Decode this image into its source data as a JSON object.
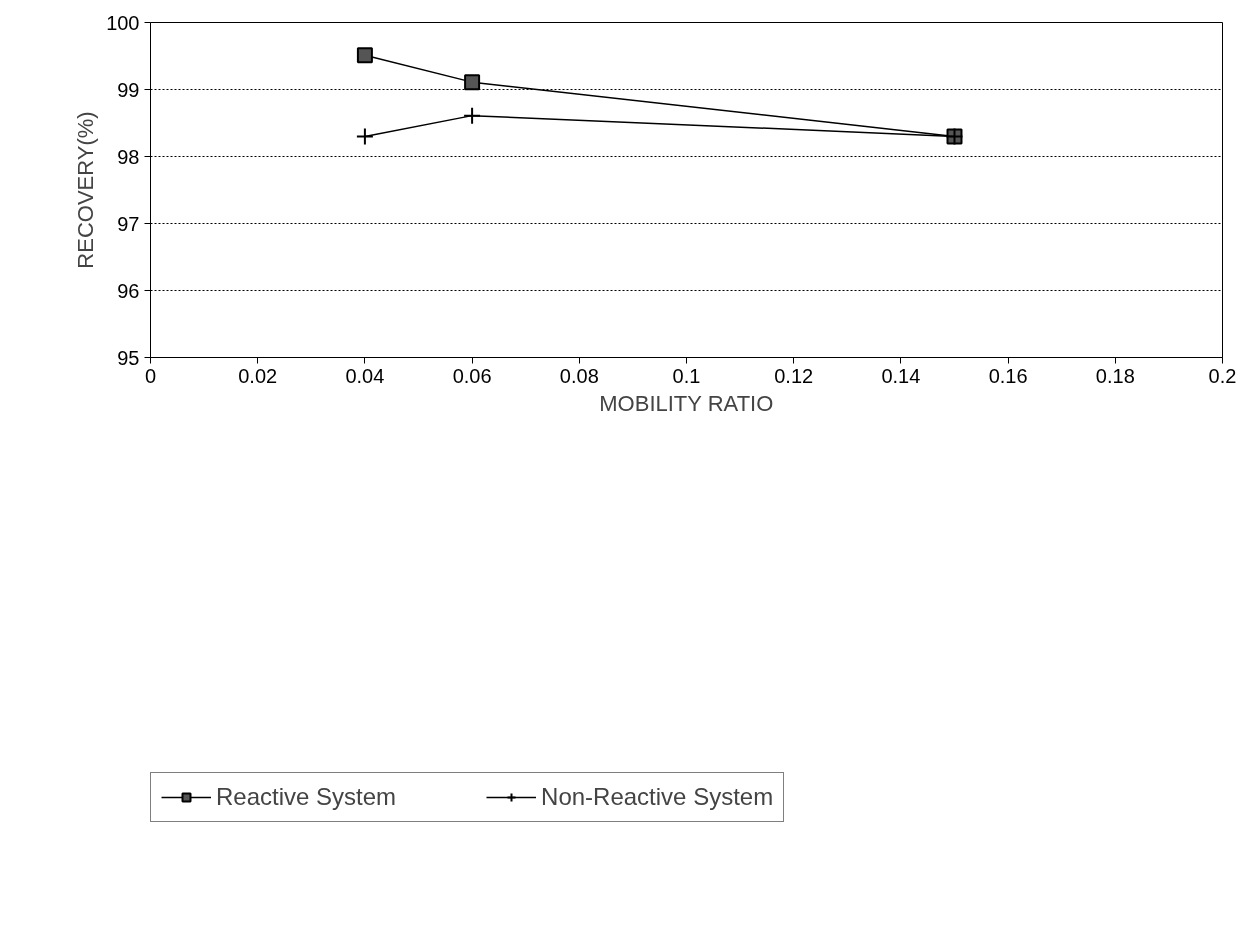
{
  "chart_data": {
    "type": "line",
    "xlabel": "MOBILITY RATIO",
    "ylabel": "RECOVERY(%)",
    "xlim": [
      0,
      0.2
    ],
    "xticks": [
      0,
      0.02,
      0.04,
      0.06,
      0.08,
      0.1,
      0.12,
      0.14,
      0.16,
      0.18,
      0.2
    ],
    "ylim": [
      95,
      100
    ],
    "yticks": [
      95,
      96,
      97,
      98,
      99,
      100
    ],
    "grid": "y",
    "legend": "bottom",
    "line_style": "solid",
    "series": [
      {
        "name": "Reactive System",
        "color": "#000000",
        "marker": "square",
        "x": [
          0.04,
          0.06,
          0.15
        ],
        "values": [
          99.51,
          99.11,
          98.3
        ]
      },
      {
        "name": "Non-Reactive System",
        "color": "#000000",
        "marker": "cross",
        "x": [
          0.04,
          0.06,
          0.15
        ],
        "values": [
          98.3,
          98.61,
          98.3
        ]
      }
    ]
  }
}
